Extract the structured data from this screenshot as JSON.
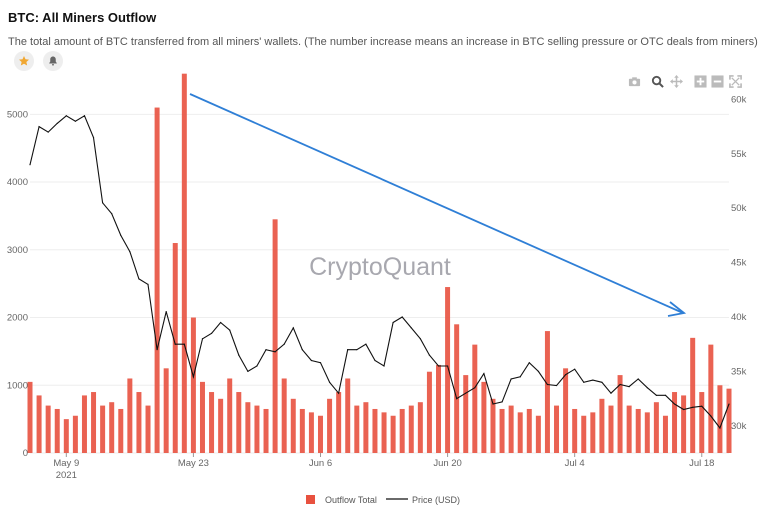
{
  "header": {
    "title": "BTC: All Miners Outflow",
    "subtitle": "The total amount of BTC transferred from all miners' wallets. (The number increase means an increase in BTC selling pressure or OTC deals from miners)"
  },
  "buttons": {
    "favorite_icon": "star-icon",
    "alert_icon": "bell-icon"
  },
  "toolbar": [
    "camera-icon",
    "zoom-icon",
    "pan-icon",
    "zoom-in-icon",
    "zoom-out-icon",
    "autoscale-icon"
  ],
  "watermark": "CryptoQuant",
  "colors": {
    "outflow": "#e8513f",
    "price": "#111111",
    "arrow": "#2f7fd6",
    "grid": "#eeeeee",
    "axis_text": "#666666"
  },
  "chart_data": {
    "type": "bar",
    "x_ticks": [
      "May 9",
      "May 23",
      "Jun 6",
      "Jun 20",
      "Jul 4",
      "Jul 18"
    ],
    "x_year_label": "2021",
    "xlim": [
      "2021-05-05",
      "2021-07-21"
    ],
    "y_left": {
      "ticks": [
        "0",
        "1000",
        "2000",
        "3000",
        "4000",
        "5000"
      ],
      "range": [
        0,
        5300
      ]
    },
    "y_right": {
      "ticks": [
        "30k",
        "35k",
        "40k",
        "45k",
        "50k",
        "55k",
        "60k"
      ],
      "range": [
        27500,
        60500
      ]
    },
    "legend": {
      "position": "bottom",
      "items": [
        "Outflow Total",
        "Price (USD)"
      ]
    },
    "series": [
      {
        "name": "Outflow Total",
        "type": "bar",
        "x": [
          "2021-05-05",
          "2021-05-06",
          "2021-05-07",
          "2021-05-08",
          "2021-05-09",
          "2021-05-10",
          "2021-05-11",
          "2021-05-12",
          "2021-05-13",
          "2021-05-14",
          "2021-05-15",
          "2021-05-16",
          "2021-05-17",
          "2021-05-18",
          "2021-05-19",
          "2021-05-20",
          "2021-05-21",
          "2021-05-22",
          "2021-05-23",
          "2021-05-24",
          "2021-05-25",
          "2021-05-26",
          "2021-05-27",
          "2021-05-28",
          "2021-05-29",
          "2021-05-30",
          "2021-05-31",
          "2021-06-01",
          "2021-06-02",
          "2021-06-03",
          "2021-06-04",
          "2021-06-05",
          "2021-06-06",
          "2021-06-07",
          "2021-06-08",
          "2021-06-09",
          "2021-06-10",
          "2021-06-11",
          "2021-06-12",
          "2021-06-13",
          "2021-06-14",
          "2021-06-15",
          "2021-06-16",
          "2021-06-17",
          "2021-06-18",
          "2021-06-19",
          "2021-06-20",
          "2021-06-21",
          "2021-06-22",
          "2021-06-23",
          "2021-06-24",
          "2021-06-25",
          "2021-06-26",
          "2021-06-27",
          "2021-06-28",
          "2021-06-29",
          "2021-06-30",
          "2021-07-01",
          "2021-07-02",
          "2021-07-03",
          "2021-07-04",
          "2021-07-05",
          "2021-07-06",
          "2021-07-07",
          "2021-07-08",
          "2021-07-09",
          "2021-07-10",
          "2021-07-11",
          "2021-07-12",
          "2021-07-13",
          "2021-07-14",
          "2021-07-15",
          "2021-07-16",
          "2021-07-17",
          "2021-07-18",
          "2021-07-19",
          "2021-07-20",
          "2021-07-21"
        ],
        "values": [
          1050,
          850,
          700,
          650,
          500,
          550,
          850,
          900,
          700,
          750,
          650,
          1100,
          900,
          700,
          5100,
          1250,
          3100,
          5600,
          2000,
          1050,
          900,
          800,
          1100,
          900,
          750,
          700,
          650,
          3450,
          1100,
          800,
          650,
          600,
          550,
          800,
          900,
          1100,
          700,
          750,
          650,
          600,
          550,
          650,
          700,
          750,
          1200,
          1300,
          2450,
          1900,
          1150,
          1600,
          1050,
          800,
          650,
          700,
          600,
          650,
          550,
          1800,
          700,
          1250,
          650,
          550,
          600,
          800,
          700,
          1150,
          700,
          650,
          600,
          750,
          550,
          900,
          850,
          1700,
          900,
          1600,
          1000,
          950
        ]
      },
      {
        "name": "Price (USD)",
        "type": "line",
        "x": [
          "2021-05-05",
          "2021-05-06",
          "2021-05-07",
          "2021-05-08",
          "2021-05-09",
          "2021-05-10",
          "2021-05-11",
          "2021-05-12",
          "2021-05-13",
          "2021-05-14",
          "2021-05-15",
          "2021-05-16",
          "2021-05-17",
          "2021-05-18",
          "2021-05-19",
          "2021-05-20",
          "2021-05-21",
          "2021-05-22",
          "2021-05-23",
          "2021-05-24",
          "2021-05-25",
          "2021-05-26",
          "2021-05-27",
          "2021-05-28",
          "2021-05-29",
          "2021-05-30",
          "2021-05-31",
          "2021-06-01",
          "2021-06-02",
          "2021-06-03",
          "2021-06-04",
          "2021-06-05",
          "2021-06-06",
          "2021-06-07",
          "2021-06-08",
          "2021-06-09",
          "2021-06-10",
          "2021-06-11",
          "2021-06-12",
          "2021-06-13",
          "2021-06-14",
          "2021-06-15",
          "2021-06-16",
          "2021-06-17",
          "2021-06-18",
          "2021-06-19",
          "2021-06-20",
          "2021-06-21",
          "2021-06-22",
          "2021-06-23",
          "2021-06-24",
          "2021-06-25",
          "2021-06-26",
          "2021-06-27",
          "2021-06-28",
          "2021-06-29",
          "2021-06-30",
          "2021-07-01",
          "2021-07-02",
          "2021-07-03",
          "2021-07-04",
          "2021-07-05",
          "2021-07-06",
          "2021-07-07",
          "2021-07-08",
          "2021-07-09",
          "2021-07-10",
          "2021-07-11",
          "2021-07-12",
          "2021-07-13",
          "2021-07-14",
          "2021-07-15",
          "2021-07-16",
          "2021-07-17",
          "2021-07-18",
          "2021-07-19",
          "2021-07-20",
          "2021-07-21"
        ],
        "values": [
          54000,
          57500,
          57000,
          57800,
          58500,
          58000,
          58500,
          56500,
          50500,
          49500,
          47500,
          46000,
          43500,
          43000,
          37000,
          40500,
          37500,
          37500,
          34500,
          38000,
          38500,
          39500,
          38800,
          36500,
          35000,
          35500,
          37000,
          36800,
          37500,
          39000,
          37000,
          36000,
          35800,
          34000,
          33000,
          37000,
          37000,
          37500,
          36000,
          35500,
          39500,
          40000,
          39000,
          38000,
          36500,
          35500,
          35500,
          32500,
          33000,
          33500,
          34800,
          32000,
          32200,
          34300,
          34500,
          35800,
          35000,
          33800,
          33700,
          34700,
          35200,
          34000,
          34200,
          34000,
          33000,
          33800,
          33600,
          34300,
          33500,
          32800,
          32800,
          32000,
          31500,
          31700,
          31800,
          30900,
          29800,
          32000
        ]
      }
    ]
  }
}
